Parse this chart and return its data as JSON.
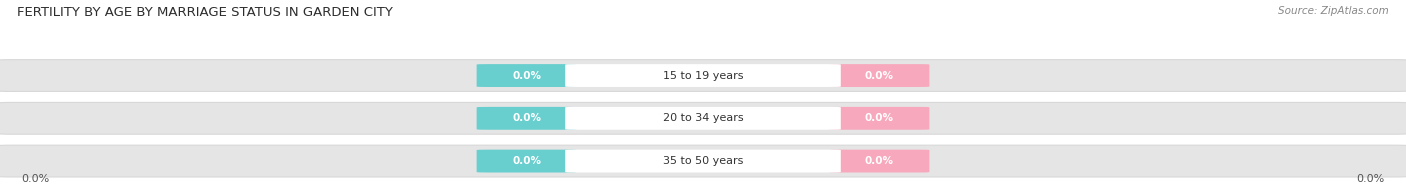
{
  "title": "FERTILITY BY AGE BY MARRIAGE STATUS IN GARDEN CITY",
  "source": "Source: ZipAtlas.com",
  "categories": [
    "15 to 19 years",
    "20 to 34 years",
    "35 to 50 years"
  ],
  "married_values": [
    0.0,
    0.0,
    0.0
  ],
  "unmarried_values": [
    0.0,
    0.0,
    0.0
  ],
  "married_color": "#68cece",
  "unmarried_color": "#f7a8bc",
  "bar_bg_color": "#e5e5e5",
  "bar_bg_edge": "#d8d8d8",
  "title_fontsize": 9.5,
  "source_fontsize": 7.5,
  "label_fontsize": 8,
  "category_fontsize": 8,
  "value_fontsize": 7.5,
  "background_color": "#ffffff",
  "x_left_label": "0.0%",
  "x_right_label": "0.0%"
}
